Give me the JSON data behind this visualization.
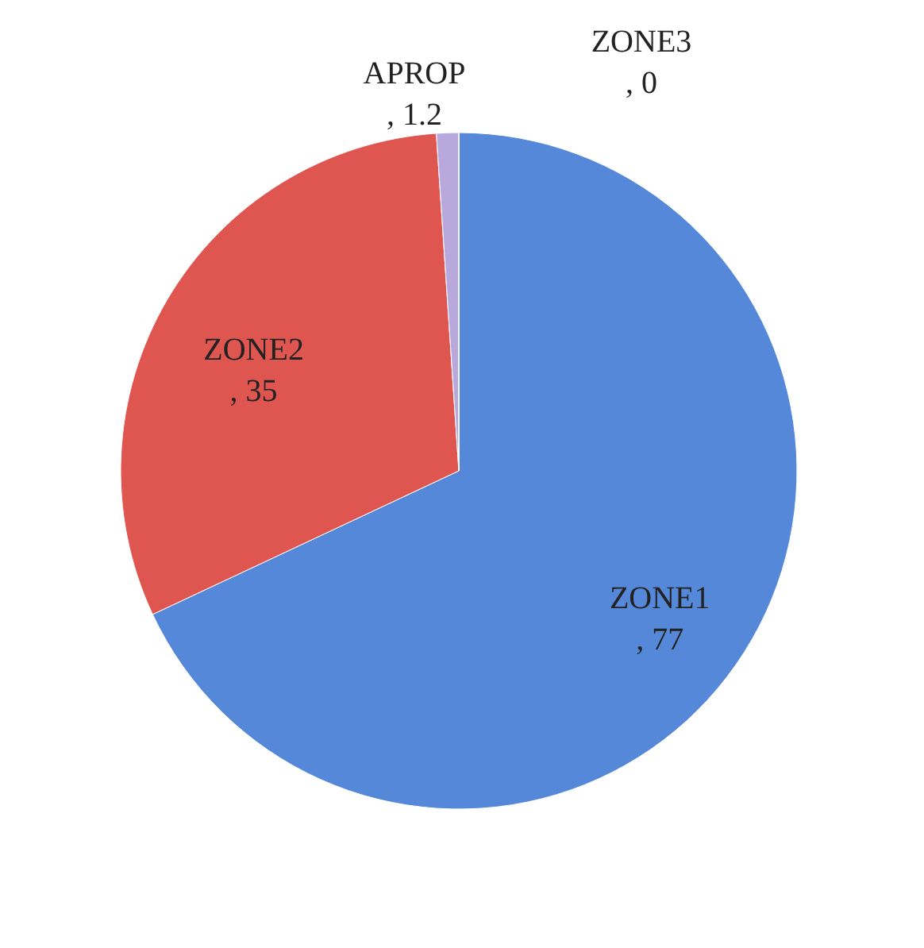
{
  "chart_data": {
    "type": "pie",
    "categories": [
      "ZONE1",
      "ZONE2",
      "APROP",
      "ZONE3"
    ],
    "values": [
      77,
      35,
      1.2,
      0
    ],
    "value_labels": [
      ", 77",
      ", 35",
      ", 1.2",
      ", 0"
    ],
    "colors": [
      "#5588d8",
      "#df5550",
      "#b8a8dc",
      "#9ab8e8"
    ]
  }
}
